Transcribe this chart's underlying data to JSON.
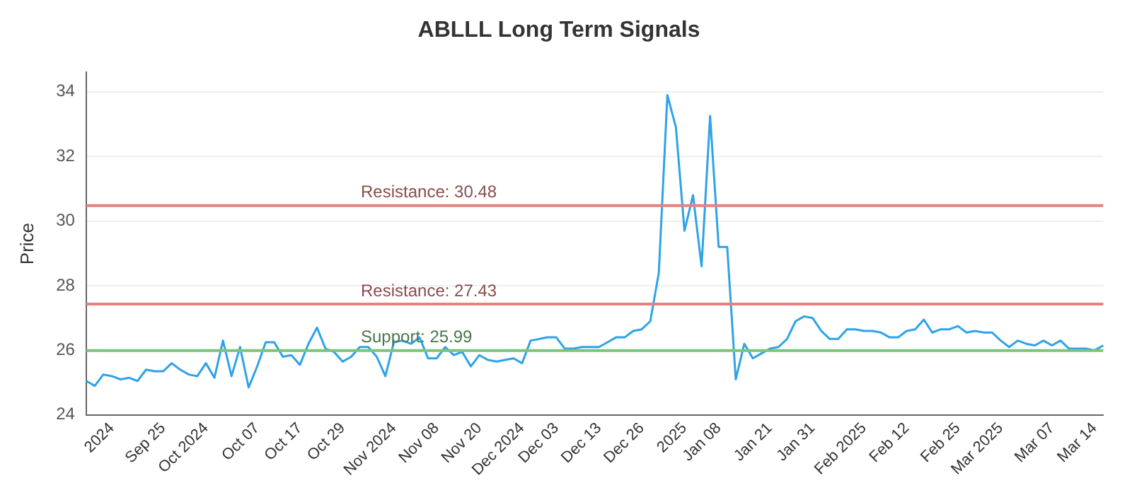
{
  "chart_data": {
    "type": "line",
    "title": "ABLLL Long Term Signals",
    "ylabel": "Price",
    "categories": [
      null,
      null,
      null,
      "2024",
      null,
      null,
      null,
      null,
      null,
      "Sep 25",
      null,
      null,
      null,
      null,
      "Oct 2024",
      null,
      null,
      null,
      null,
      null,
      "Oct 07",
      null,
      null,
      null,
      null,
      "Oct 17",
      null,
      null,
      null,
      null,
      "Oct 29",
      null,
      null,
      null,
      null,
      null,
      "Nov 2024",
      null,
      null,
      null,
      null,
      "Nov 08",
      null,
      null,
      null,
      null,
      "Nov 20",
      null,
      null,
      null,
      null,
      "Dec 2024",
      null,
      null,
      null,
      "Dec 03",
      null,
      null,
      null,
      null,
      "Dec 13",
      null,
      null,
      null,
      null,
      "Dec 26",
      null,
      null,
      null,
      null,
      "2025",
      null,
      null,
      null,
      "Jan 08",
      null,
      null,
      null,
      null,
      null,
      "Jan 21",
      null,
      null,
      null,
      null,
      "Jan 31",
      null,
      null,
      null,
      null,
      null,
      "Feb 2025",
      null,
      null,
      null,
      null,
      "Feb 12",
      null,
      null,
      null,
      null,
      null,
      "Feb 25",
      null,
      null,
      null,
      null,
      "Mar 2025",
      null,
      null,
      null,
      null,
      null,
      "Mar 07",
      null,
      null,
      null,
      null,
      "Mar 14",
      null
    ],
    "series": [
      {
        "color": "#2ea3e8",
        "values": [
          25.05,
          24.9,
          25.25,
          25.2,
          25.1,
          25.15,
          25.05,
          25.4,
          25.35,
          25.35,
          25.6,
          25.4,
          25.25,
          25.2,
          25.6,
          25.15,
          26.3,
          25.2,
          26.1,
          24.85,
          25.5,
          26.25,
          26.25,
          25.8,
          25.85,
          25.55,
          26.2,
          26.7,
          26.05,
          25.95,
          25.65,
          25.8,
          26.1,
          26.1,
          25.8,
          25.2,
          26.25,
          26.3,
          26.2,
          26.4,
          25.75,
          25.75,
          26.1,
          25.85,
          25.95,
          25.5,
          25.85,
          25.7,
          25.65,
          25.7,
          25.75,
          25.6,
          26.3,
          26.35,
          26.4,
          26.4,
          26.05,
          26.05,
          26.1,
          26.1,
          26.1,
          26.25,
          26.4,
          26.4,
          26.6,
          26.65,
          26.9,
          28.4,
          33.9,
          32.9,
          29.7,
          30.8,
          28.6,
          33.25,
          29.2,
          29.2,
          25.1,
          26.2,
          25.75,
          25.9,
          26.05,
          26.1,
          26.35,
          26.9,
          27.05,
          27.0,
          26.6,
          26.35,
          26.35,
          26.65,
          26.65,
          26.6,
          26.6,
          26.55,
          26.4,
          26.4,
          26.6,
          26.65,
          26.95,
          26.55,
          26.65,
          26.65,
          26.75,
          26.55,
          26.6,
          26.55,
          26.55,
          26.3,
          26.1,
          26.3,
          26.2,
          26.15,
          26.3,
          26.15,
          26.3,
          26.05,
          26.05,
          26.05,
          26.0,
          26.15
        ]
      }
    ],
    "ylim": [
      24,
      34.6
    ],
    "yticks": [
      24,
      26,
      28,
      30,
      32,
      34
    ],
    "grid": "y",
    "marker": "none",
    "line_style": "solid",
    "ref_lines": [
      {
        "axis": "y",
        "value": 30.48,
        "label": "Resistance: 30.48",
        "color": "#e88080"
      },
      {
        "axis": "y",
        "value": 27.43,
        "label": "Resistance: 27.43",
        "color": "#e88080"
      },
      {
        "axis": "y",
        "value": 25.99,
        "label": "Support: 25.99",
        "color": "#7cc47c"
      }
    ]
  }
}
